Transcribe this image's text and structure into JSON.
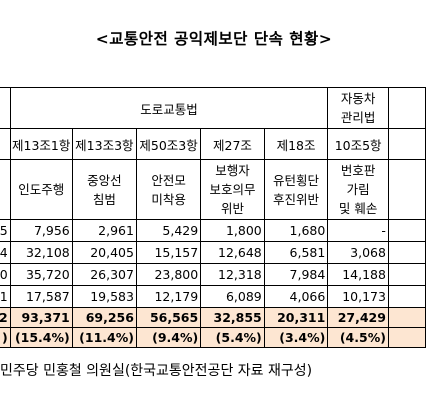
{
  "title": "<교통안전 공익제보단 단속 현황>",
  "header": {
    "group_road_law": "도로교통법",
    "group_vehicle_law": "자동차\n관리법",
    "articles": [
      "제13조1항",
      "제13조3항",
      "제50조3항",
      "제27조",
      "제18조",
      "10조5항"
    ],
    "violations": [
      "인도주행",
      "중앙선\n침범",
      "안전모\n미착용",
      "보행자\n보호의무\n위반",
      "유턴횡단\n후진위반",
      "번호판\n가림\n및 훼손"
    ]
  },
  "rows": [
    {
      "lead": "5",
      "values": [
        "7,956",
        "2,961",
        "5,429",
        "1,800",
        "1,680",
        "-"
      ]
    },
    {
      "lead": "4",
      "values": [
        "32,108",
        "20,405",
        "15,157",
        "12,648",
        "6,581",
        "3,068"
      ]
    },
    {
      "lead": "0",
      "values": [
        "35,720",
        "26,307",
        "23,800",
        "12,318",
        "7,984",
        "14,188"
      ]
    },
    {
      "lead": "1",
      "values": [
        "17,587",
        "19,583",
        "12,179",
        "6,089",
        "4,066",
        "10,173"
      ]
    }
  ],
  "total": {
    "lead": "2",
    "values": [
      "93,371",
      "69,256",
      "56,565",
      "32,855",
      "20,311",
      "27,429"
    ],
    "percent_lead": ")",
    "percents": [
      "(15.4%)",
      "(11.4%)",
      "(9.4%)",
      "(5.4%)",
      "(3.4%)",
      "(4.5%)"
    ]
  },
  "footnote": "민주당 민홍철 의원실(한국교통안전공단 자료 재구성)"
}
